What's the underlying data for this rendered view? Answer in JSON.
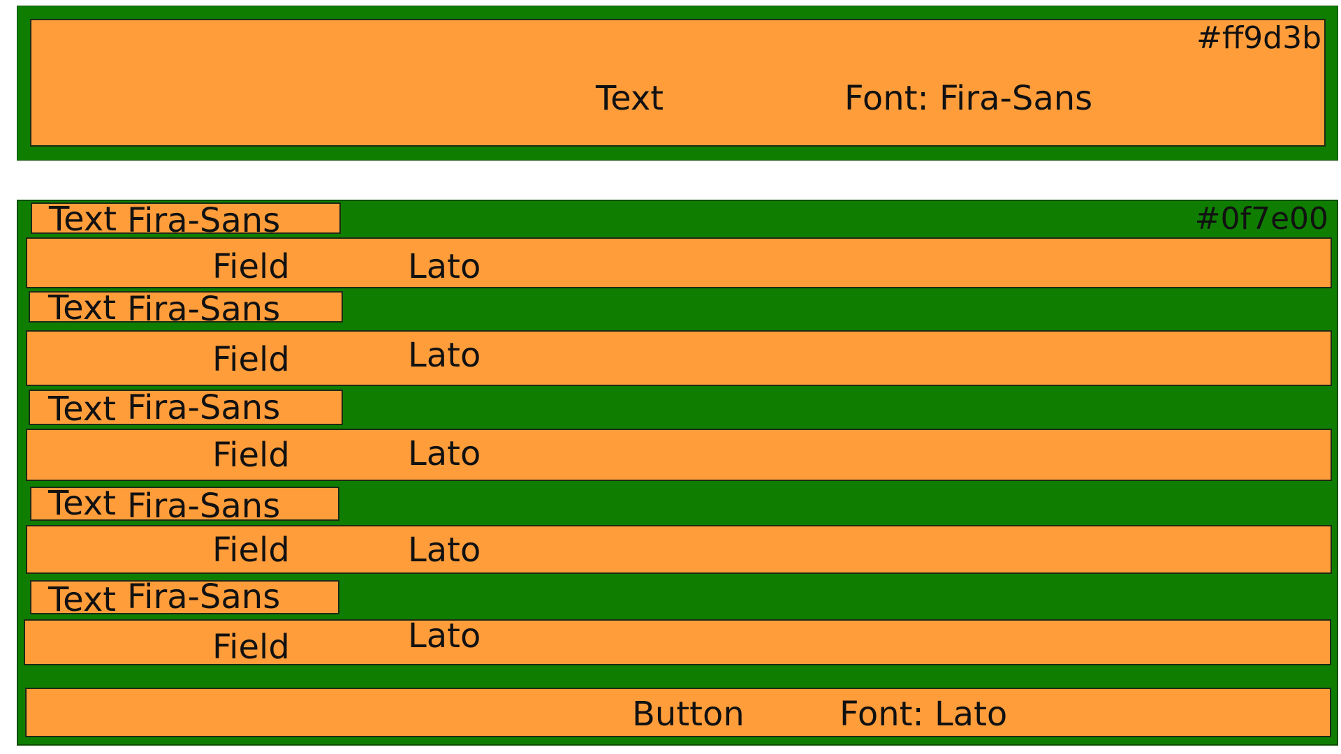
{
  "header": {
    "color_label": "#ff9d3b",
    "title": "Text",
    "font_label": "Font: Fira-Sans"
  },
  "form": {
    "color_label": "#0f7e00",
    "rows": [
      {
        "label_text": "Text",
        "label_font": "Fira-Sans",
        "field_text": "Field",
        "field_font": "Lato"
      },
      {
        "label_text": "Text",
        "label_font": "Fira-Sans",
        "field_text": "Field",
        "field_font": "Lato"
      },
      {
        "label_text": "Text",
        "label_font": "Fira-Sans",
        "field_text": "Field",
        "field_font": "Lato"
      },
      {
        "label_text": "Text",
        "label_font": "Fira-Sans",
        "field_text": "Field",
        "field_font": "Lato"
      },
      {
        "label_text": "Text",
        "label_font": "Fira-Sans",
        "field_text": "Field",
        "field_font": "Lato"
      }
    ],
    "button": {
      "label": "Button",
      "font_label": "Font: Lato"
    }
  },
  "colors": {
    "orange": "#ff9d3b",
    "green": "#0f7e00"
  }
}
